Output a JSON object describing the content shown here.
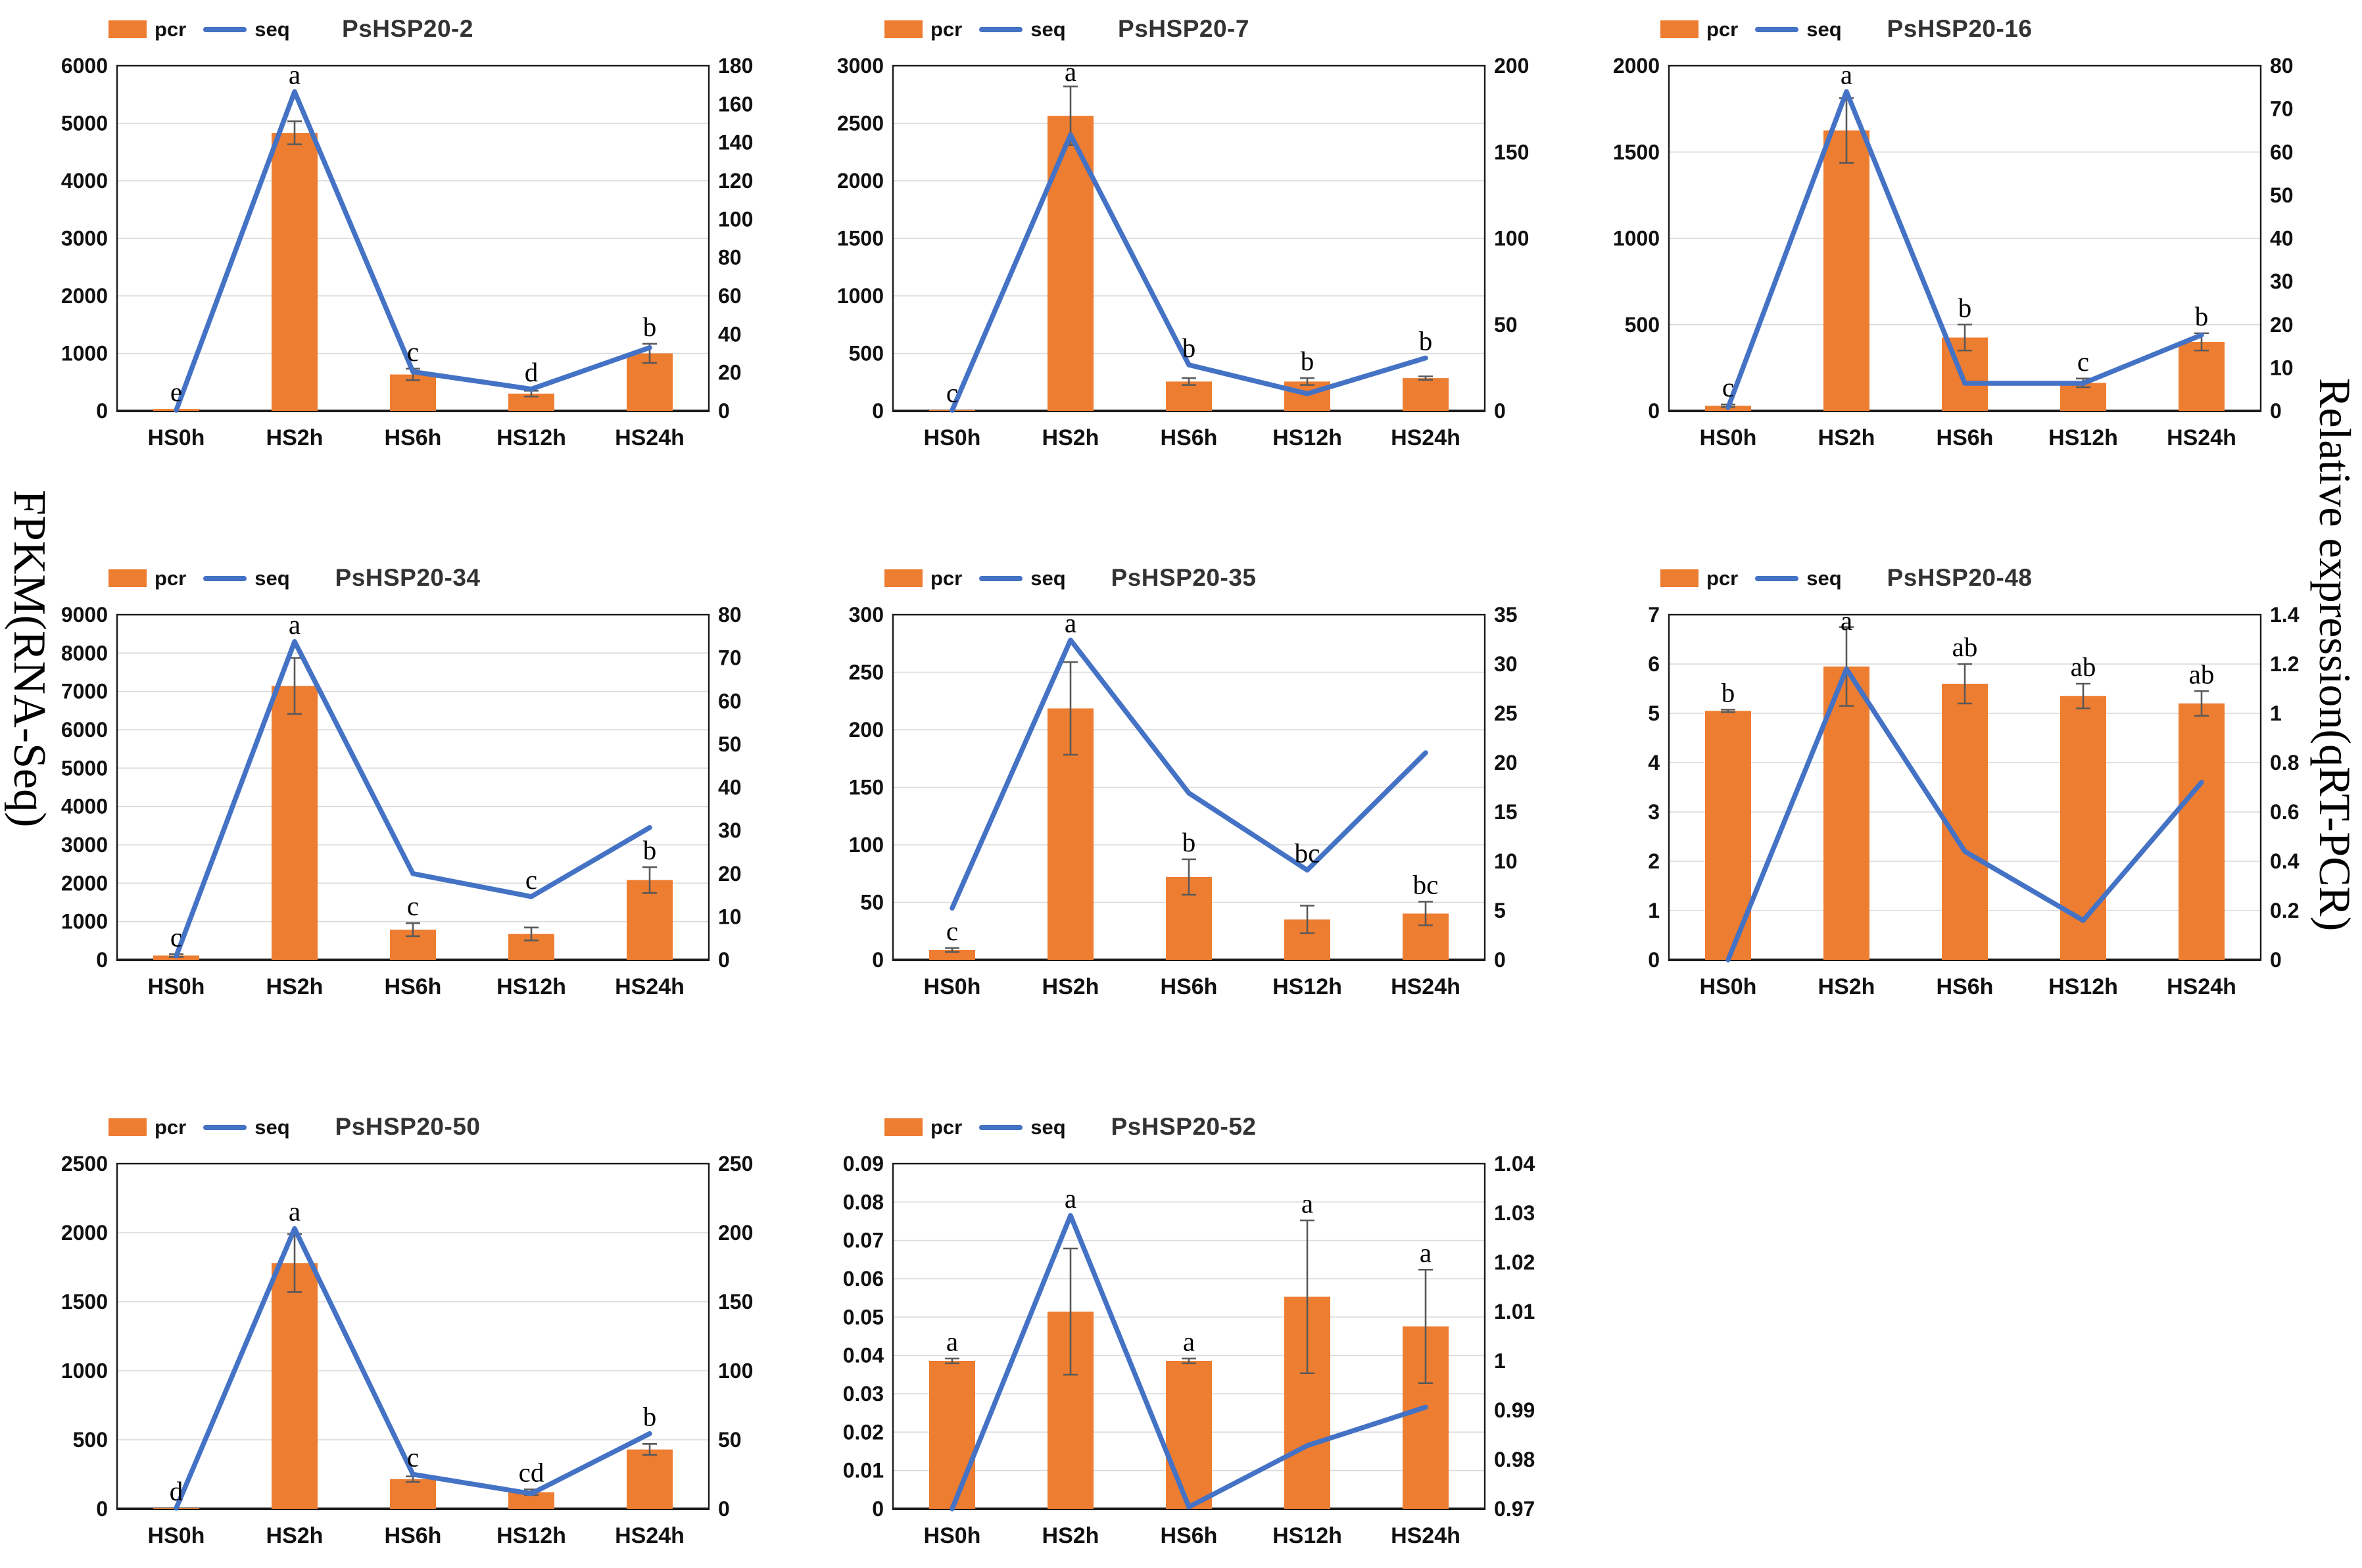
{
  "figure": {
    "left_axis_label": "FPKM(RNA-Seq)",
    "right_axis_label": "Relative expression(qRT-PCR)",
    "legend": {
      "pcr_label": "pcr",
      "seq_label": "seq"
    },
    "colors": {
      "bar": "#ED7D31",
      "line": "#4472C4",
      "error": "#595959",
      "grid": "#D9D9D9",
      "axis": "#1a1a1a",
      "tick_text": "#111111",
      "title_text": "#333333"
    }
  },
  "chart_data": [
    {
      "type": "bar+line",
      "title": "PsHSP20-2",
      "categories": [
        "HS0h",
        "HS2h",
        "HS6h",
        "HS12h",
        "HS24h"
      ],
      "left_axis": {
        "min": 0,
        "max": 6000,
        "labels": [
          "0",
          "1000",
          "2000",
          "3000",
          "4000",
          "5000",
          "6000"
        ]
      },
      "right_axis": {
        "min": 0,
        "max": 180,
        "labels": [
          "0",
          "20",
          "40",
          "60",
          "80",
          "100",
          "120",
          "140",
          "160",
          "180"
        ]
      },
      "series": [
        {
          "name": "pcr",
          "kind": "bar",
          "axis": "right",
          "values": [
            1,
            145,
            19,
            9,
            30
          ],
          "errors": [
            0,
            6,
            3,
            1.5,
            5
          ]
        },
        {
          "name": "seq",
          "kind": "line",
          "axis": "left",
          "values": [
            10,
            5550,
            680,
            380,
            1100
          ]
        }
      ],
      "sig_letters": [
        "e",
        "a",
        "c",
        "d",
        "b"
      ],
      "grid": true
    },
    {
      "type": "bar+line",
      "title": "PsHSP20-7",
      "categories": [
        "HS0h",
        "HS2h",
        "HS6h",
        "HS12h",
        "HS24h"
      ],
      "left_axis": {
        "min": 0,
        "max": 3000,
        "labels": [
          "0",
          "500",
          "1000",
          "1500",
          "2000",
          "2500",
          "3000"
        ]
      },
      "right_axis": {
        "min": 0,
        "max": 200,
        "labels": [
          "0",
          "50",
          "100",
          "150",
          "200"
        ]
      },
      "series": [
        {
          "name": "pcr",
          "kind": "bar",
          "axis": "right",
          "values": [
            0.5,
            171,
            17,
            17,
            19
          ],
          "errors": [
            0,
            17,
            2,
            2,
            1
          ]
        },
        {
          "name": "seq",
          "kind": "line",
          "axis": "left",
          "values": [
            5,
            2400,
            400,
            150,
            460
          ]
        }
      ],
      "sig_letters": [
        "c",
        "a",
        "b",
        "b",
        "b"
      ],
      "grid": true
    },
    {
      "type": "bar+line",
      "title": "PsHSP20-16",
      "categories": [
        "HS0h",
        "HS2h",
        "HS6h",
        "HS12h",
        "HS24h"
      ],
      "left_axis": {
        "min": 0,
        "max": 2000,
        "labels": [
          "0",
          "500",
          "1000",
          "1500",
          "2000"
        ]
      },
      "right_axis": {
        "min": 0,
        "max": 80,
        "labels": [
          "0",
          "10",
          "20",
          "30",
          "40",
          "50",
          "60",
          "70",
          "80"
        ]
      },
      "series": [
        {
          "name": "pcr",
          "kind": "bar",
          "axis": "right",
          "values": [
            1.2,
            65,
            17,
            6.5,
            16
          ],
          "errors": [
            0.3,
            7.5,
            3,
            1,
            2
          ]
        },
        {
          "name": "seq",
          "kind": "line",
          "axis": "left",
          "values": [
            20,
            1850,
            160,
            160,
            440
          ]
        }
      ],
      "sig_letters": [
        "c",
        "a",
        "b",
        "c",
        "b"
      ],
      "grid": true
    },
    {
      "type": "bar+line",
      "title": "PsHSP20-34",
      "categories": [
        "HS0h",
        "HS2h",
        "HS6h",
        "HS12h",
        "HS24h"
      ],
      "left_axis": {
        "min": 0,
        "max": 9000,
        "labels": [
          "0",
          "1000",
          "2000",
          "3000",
          "4000",
          "5000",
          "6000",
          "7000",
          "8000",
          "9000"
        ]
      },
      "right_axis": {
        "min": 0,
        "max": 80,
        "labels": [
          "0",
          "10",
          "20",
          "30",
          "40",
          "50",
          "60",
          "70",
          "80"
        ]
      },
      "series": [
        {
          "name": "pcr",
          "kind": "bar",
          "axis": "right",
          "values": [
            1,
            63.5,
            7,
            6,
            18.5
          ],
          "errors": [
            0.3,
            6.5,
            1.5,
            1.5,
            3
          ]
        },
        {
          "name": "seq",
          "kind": "line",
          "axis": "left",
          "values": [
            100,
            8300,
            2250,
            1650,
            3450
          ]
        }
      ],
      "sig_letters": [
        "c",
        "a",
        "c",
        "c",
        "b"
      ],
      "grid": true
    },
    {
      "type": "bar+line",
      "title": "PsHSP20-35",
      "categories": [
        "HS0h",
        "HS2h",
        "HS6h",
        "HS12h",
        "HS24h"
      ],
      "left_axis": {
        "min": 0,
        "max": 300,
        "labels": [
          "0",
          "50",
          "100",
          "150",
          "200",
          "250",
          "300"
        ]
      },
      "right_axis": {
        "min": 0,
        "max": 35,
        "labels": [
          "0",
          "5",
          "10",
          "15",
          "20",
          "25",
          "30",
          "35"
        ]
      },
      "series": [
        {
          "name": "pcr",
          "kind": "bar",
          "axis": "right",
          "values": [
            1,
            25.5,
            8.4,
            4.1,
            4.7
          ],
          "errors": [
            0.2,
            4.7,
            1.8,
            1.4,
            1.2
          ]
        },
        {
          "name": "seq",
          "kind": "line",
          "axis": "left",
          "values": [
            45,
            278,
            145,
            78,
            180
          ]
        }
      ],
      "sig_letters": [
        "c",
        "a",
        "b",
        "bc",
        "bc"
      ],
      "grid": true
    },
    {
      "type": "bar+line",
      "title": "PsHSP20-48",
      "categories": [
        "HS0h",
        "HS2h",
        "HS6h",
        "HS12h",
        "HS24h"
      ],
      "left_axis": {
        "min": 0,
        "max": 7,
        "labels": [
          "0",
          "1",
          "2",
          "3",
          "4",
          "5",
          "6",
          "7"
        ]
      },
      "right_axis": {
        "min": 0,
        "max": 1.4,
        "labels": [
          "0",
          "0.2",
          "0.4",
          "0.6",
          "0.8",
          "1",
          "1.2",
          "1.4"
        ]
      },
      "series": [
        {
          "name": "pcr",
          "kind": "bar",
          "axis": "right",
          "values": [
            1.01,
            1.19,
            1.12,
            1.07,
            1.04
          ],
          "errors": [
            0.005,
            0.16,
            0.08,
            0.05,
            0.05
          ]
        },
        {
          "name": "seq",
          "kind": "line",
          "axis": "left",
          "values": [
            0,
            5.9,
            2.2,
            0.8,
            3.6
          ]
        }
      ],
      "sig_letters": [
        "b",
        "a",
        "ab",
        "ab",
        "ab"
      ],
      "grid": true
    },
    {
      "type": "bar+line",
      "title": "PsHSP20-50",
      "categories": [
        "HS0h",
        "HS2h",
        "HS6h",
        "HS12h",
        "HS24h"
      ],
      "left_axis": {
        "min": 0,
        "max": 2500,
        "labels": [
          "0",
          "500",
          "1000",
          "1500",
          "2000",
          "2500"
        ]
      },
      "right_axis": {
        "min": 0,
        "max": 250,
        "labels": [
          "0",
          "50",
          "100",
          "150",
          "200",
          "250"
        ]
      },
      "series": [
        {
          "name": "pcr",
          "kind": "bar",
          "axis": "right",
          "values": [
            0.5,
            178,
            21.5,
            12,
            43
          ],
          "errors": [
            0,
            21,
            2,
            2,
            4
          ]
        },
        {
          "name": "seq",
          "kind": "line",
          "axis": "left",
          "values": [
            5,
            2030,
            250,
            110,
            545
          ]
        }
      ],
      "sig_letters": [
        "d",
        "a",
        "c",
        "cd",
        "b"
      ],
      "grid": true
    },
    {
      "type": "bar+line",
      "title": "PsHSP20-52",
      "categories": [
        "HS0h",
        "HS2h",
        "HS6h",
        "HS12h",
        "HS24h"
      ],
      "left_axis": {
        "min": 0,
        "max": 0.09,
        "labels": [
          "0",
          "0.01",
          "0.02",
          "0.03",
          "0.04",
          "0.05",
          "0.06",
          "0.07",
          "0.08",
          "0.09"
        ]
      },
      "right_axis": {
        "min": 0.97,
        "max": 1.04,
        "labels": [
          "0.97",
          "0.98",
          "0.99",
          "1",
          "1.01",
          "1.02",
          "1.03",
          "1.04"
        ]
      },
      "series": [
        {
          "name": "pcr",
          "kind": "bar",
          "axis": "right",
          "values": [
            1.0,
            1.01,
            1.0,
            1.013,
            1.007
          ],
          "errors": [
            0.0005,
            0.0128,
            0.0005,
            0.0155,
            0.0115
          ]
        },
        {
          "name": "seq",
          "kind": "line",
          "axis": "left",
          "values": [
            0,
            0.0765,
            0.0005,
            0.0165,
            0.0265
          ]
        }
      ],
      "sig_letters": [
        "a",
        "a",
        "a",
        "a",
        "a"
      ],
      "grid": true
    }
  ]
}
